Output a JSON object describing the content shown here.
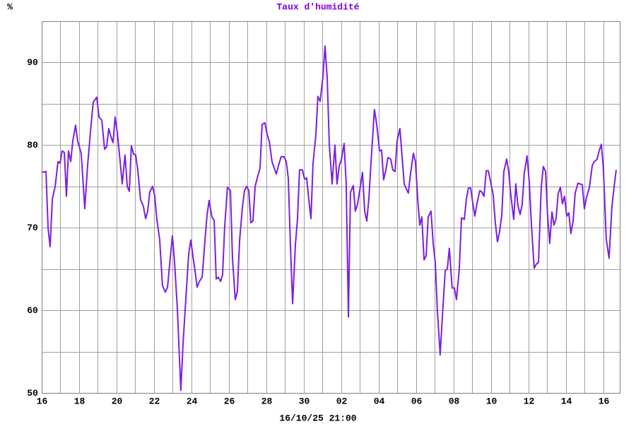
{
  "chart_data": {
    "type": "line",
    "title": "Taux d'humidité",
    "y_unit": "%",
    "x_caption": "16/10/25 21:00",
    "color": "#7b1fe0",
    "title_color": "#8000e0",
    "grid": true,
    "xlim": [
      0,
      30.87
    ],
    "ylim": [
      50,
      95
    ],
    "xticks": [
      {
        "value": 0,
        "label": "16"
      },
      {
        "value": 2,
        "label": "18"
      },
      {
        "value": 4,
        "label": "20"
      },
      {
        "value": 6,
        "label": "22"
      },
      {
        "value": 8,
        "label": "24"
      },
      {
        "value": 10,
        "label": "26"
      },
      {
        "value": 12,
        "label": "28"
      },
      {
        "value": 14,
        "label": "30"
      },
      {
        "value": 16,
        "label": "02"
      },
      {
        "value": 18,
        "label": "04"
      },
      {
        "value": 20,
        "label": "06"
      },
      {
        "value": 22,
        "label": "08"
      },
      {
        "value": 24,
        "label": "10"
      },
      {
        "value": 26,
        "label": "12"
      },
      {
        "value": 28,
        "label": "14"
      },
      {
        "value": 30,
        "label": "16"
      }
    ],
    "x_minor_ticks": [
      1,
      3,
      5,
      7,
      9,
      11,
      13,
      15,
      17,
      19,
      21,
      23,
      25,
      27,
      29
    ],
    "yticks": [
      50,
      60,
      70,
      80,
      90
    ],
    "y_minor_ticks": [
      55,
      65,
      75,
      85
    ],
    "x": [
      0,
      0.23,
      0.34,
      0.45,
      0.57,
      0.72,
      0.87,
      0.98,
      1.09,
      1.21,
      1.32,
      1.43,
      1.55,
      1.66,
      1.81,
      1.92,
      2.11,
      2.3,
      2.45,
      2.6,
      2.75,
      2.94,
      3.06,
      3.21,
      3.36,
      3.47,
      3.58,
      3.7,
      3.81,
      3.92,
      4.04,
      4.19,
      4.3,
      4.45,
      4.57,
      4.68,
      4.79,
      4.91,
      5.02,
      5.13,
      5.28,
      5.43,
      5.55,
      5.66,
      5.77,
      5.92,
      6.04,
      6.15,
      6.3,
      6.45,
      6.6,
      6.72,
      6.83,
      6.98,
      7.09,
      7.25,
      7.43,
      7.55,
      7.7,
      7.85,
      7.96,
      8.08,
      8.19,
      8.3,
      8.42,
      8.57,
      8.72,
      8.83,
      8.94,
      9.09,
      9.21,
      9.32,
      9.43,
      9.55,
      9.66,
      9.77,
      9.92,
      10.08,
      10.19,
      10.34,
      10.45,
      10.57,
      10.72,
      10.83,
      10.94,
      11.06,
      11.17,
      11.28,
      11.4,
      11.51,
      11.66,
      11.77,
      11.92,
      12.04,
      12.15,
      12.3,
      12.45,
      12.53,
      12.64,
      12.79,
      12.94,
      13.06,
      13.17,
      13.28,
      13.4,
      13.55,
      13.66,
      13.77,
      13.92,
      14.04,
      14.15,
      14.26,
      14.38,
      14.49,
      14.64,
      14.75,
      14.87,
      15.02,
      15.13,
      15.25,
      15.36,
      15.51,
      15.66,
      15.77,
      15.89,
      16.0,
      16.15,
      16.26,
      16.38,
      16.49,
      16.64,
      16.75,
      16.87,
      17.02,
      17.13,
      17.25,
      17.36,
      17.47,
      17.62,
      17.77,
      17.89,
      18.04,
      18.15,
      18.26,
      18.38,
      18.49,
      18.64,
      18.75,
      18.87,
      18.98,
      19.13,
      19.25,
      19.36,
      19.47,
      19.58,
      19.7,
      19.85,
      19.96,
      20.08,
      20.19,
      20.3,
      20.42,
      20.53,
      20.64,
      20.79,
      20.91,
      21.02,
      21.13,
      21.28,
      21.4,
      21.55,
      21.66,
      21.77,
      21.92,
      22.04,
      22.15,
      22.3,
      22.42,
      22.57,
      22.68,
      22.79,
      22.91,
      23.02,
      23.13,
      23.25,
      23.4,
      23.51,
      23.62,
      23.74,
      23.85,
      23.96,
      24.11,
      24.23,
      24.34,
      24.45,
      24.57,
      24.68,
      24.83,
      24.94,
      25.06,
      25.21,
      25.32,
      25.43,
      25.55,
      25.66,
      25.77,
      25.92,
      26.04,
      26.15,
      26.3,
      26.42,
      26.53,
      26.68,
      26.79,
      26.91,
      27.02,
      27.13,
      27.25,
      27.36,
      27.47,
      27.58,
      27.7,
      27.81,
      27.92,
      28.04,
      28.15,
      28.26,
      28.38,
      28.49,
      28.64,
      28.75,
      28.87,
      28.98,
      29.09,
      29.25,
      29.4,
      29.51,
      29.66,
      29.77,
      29.89,
      30.0,
      30.15,
      30.3,
      30.45,
      30.57,
      30.68
    ],
    "values": [
      76.7,
      76.8,
      70,
      67.7,
      73.5,
      75,
      78,
      77.8,
      79.3,
      79.1,
      73.8,
      79.3,
      78,
      80.5,
      82.4,
      80.5,
      79,
      72.3,
      77.5,
      81.5,
      85.2,
      85.8,
      83.4,
      83,
      79.5,
      79.8,
      82,
      81,
      80.3,
      83.4,
      81.5,
      78,
      75.3,
      78.8,
      75,
      74.4,
      79.9,
      78.9,
      78.8,
      77,
      73.4,
      72.6,
      71.1,
      72,
      74.3,
      75,
      73.8,
      71,
      68.6,
      63,
      62.2,
      62.8,
      65.5,
      69,
      66,
      60,
      50.3,
      56,
      61.5,
      66.8,
      68.5,
      66.5,
      64.8,
      62.8,
      63.5,
      64,
      68.5,
      71.5,
      73.3,
      71.3,
      70.9,
      63.8,
      64,
      63.5,
      64.3,
      70,
      74.9,
      74.5,
      66.2,
      61.3,
      62.3,
      68.5,
      72.5,
      74.5,
      75,
      74.5,
      70.6,
      70.8,
      75,
      76,
      77.2,
      82.5,
      82.7,
      81.3,
      80.5,
      78,
      77,
      76.5,
      77.5,
      78.6,
      78.6,
      78,
      76,
      68,
      60.8,
      68,
      71,
      77,
      77,
      75.9,
      76,
      73.5,
      71.1,
      77.8,
      81.2,
      85.9,
      85.3,
      88.3,
      92,
      88,
      80,
      75.3,
      80,
      75.3,
      77.5,
      78.2,
      80.2,
      75.4,
      59.2,
      74.3,
      75.1,
      72,
      72.9,
      75,
      76.7,
      72,
      70.8,
      73.5,
      79.1,
      84.3,
      82.5,
      79.3,
      79.4,
      75.8,
      77,
      78.5,
      78.3,
      77,
      76.8,
      80.5,
      82,
      78.5,
      75.3,
      74.7,
      74.2,
      76.6,
      79,
      78,
      73.5,
      70.3,
      71.3,
      66.1,
      66.6,
      71.3,
      72,
      68,
      65.8,
      60,
      54.6,
      59.3,
      64.8,
      65,
      67.5,
      62.7,
      62.7,
      61.3,
      65,
      71.2,
      71,
      73.5,
      74.8,
      74.8,
      73,
      71.4,
      73,
      74.5,
      74.3,
      73.8,
      76.9,
      76.9,
      75.7,
      74,
      70.5,
      68.3,
      69.5,
      71.5,
      76.8,
      78.3,
      76.8,
      73.8,
      71,
      75.3,
      72.7,
      71.6,
      72.8,
      76.6,
      78.7,
      75.5,
      70.5,
      65.1,
      65.6,
      65.8,
      75,
      77.4,
      76.8,
      71.3,
      68.1,
      71.9,
      70.3,
      71.1,
      74.1,
      74.9,
      72.9,
      73.8,
      71.4,
      71.8,
      69.3,
      70.8,
      74.2,
      75.4,
      75.3,
      75.2,
      72.3,
      73.6,
      74.9,
      77.5,
      78,
      78.3,
      79.3,
      80.1,
      77,
      68.6,
      66.3,
      72.5,
      75,
      77
    ]
  }
}
